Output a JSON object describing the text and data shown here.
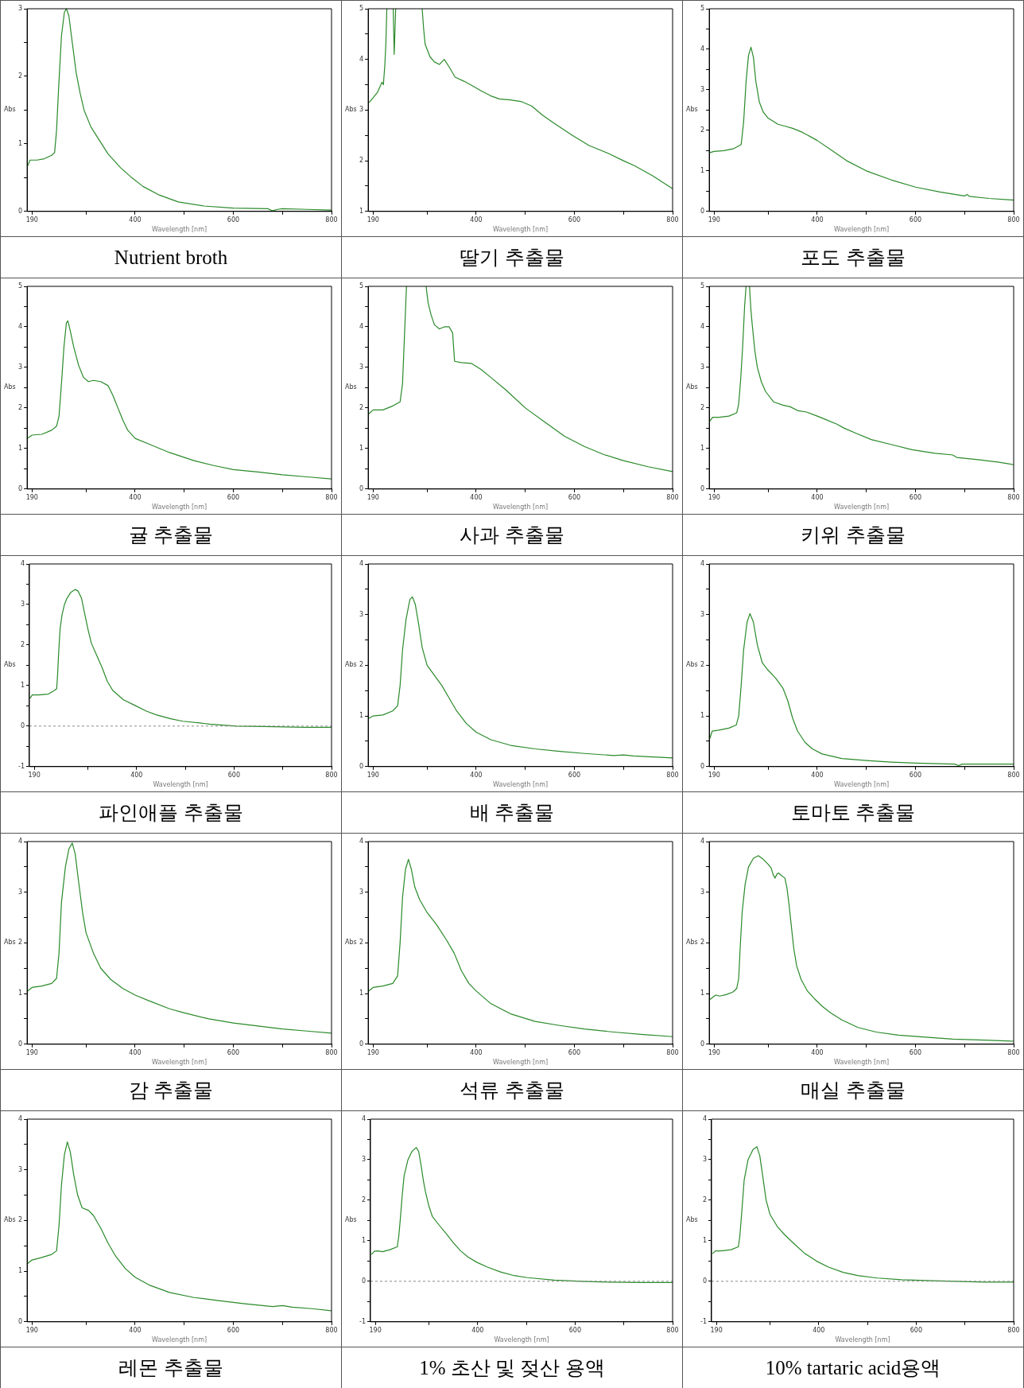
{
  "chart_data": [
    {
      "type": "line",
      "title": "Nutrient broth",
      "xlabel": "Wavelength [nm]",
      "ylabel": "Abs",
      "color": "#2a8a2a",
      "xlim": [
        180,
        800
      ],
      "ylim": [
        0,
        3
      ],
      "xticks": [
        190,
        {
          "value": 300,
          "label": null
        },
        400,
        {
          "value": 500,
          "label": null
        },
        600,
        {
          "value": 700,
          "label": null
        },
        800
      ],
      "yticks": [
        0,
        {
          "value": 0.5,
          "label": null
        },
        1,
        {
          "value": 1.5,
          "label": null
        },
        2,
        {
          "value": 2.5,
          "label": null
        },
        3
      ],
      "x": [
        181,
        186,
        200,
        215,
        230,
        236,
        240,
        244,
        250,
        256,
        260,
        265,
        272,
        280,
        288,
        296,
        310,
        330,
        345,
        370,
        393,
        416,
        450,
        488,
        540,
        600,
        670,
        680,
        690,
        700,
        750,
        800
      ],
      "values": [
        0.67,
        0.76,
        0.76,
        0.78,
        0.83,
        0.87,
        1.2,
        1.8,
        2.6,
        2.95,
        3.0,
        2.9,
        2.5,
        2.05,
        1.75,
        1.5,
        1.25,
        1.02,
        0.85,
        0.65,
        0.5,
        0.37,
        0.24,
        0.14,
        0.08,
        0.05,
        0.04,
        0.01,
        0.03,
        0.04,
        0.03,
        0.02
      ]
    },
    {
      "type": "line",
      "title": "딸기 추출물",
      "xlabel": "Wavelength [nm]",
      "ylabel": "Abs",
      "color": "#2a8a2a",
      "xlim": [
        180,
        800
      ],
      "ylim": [
        1,
        5
      ],
      "xticks": [
        190,
        {
          "value": 300,
          "label": null
        },
        400,
        {
          "value": 500,
          "label": null
        },
        600,
        {
          "value": 700,
          "label": null
        },
        800
      ],
      "yticks": [
        1,
        {
          "value": 1.5,
          "label": null
        },
        2,
        {
          "value": 2.5,
          "label": null
        },
        3,
        {
          "value": 3.5,
          "label": null
        },
        4,
        {
          "value": 4.5,
          "label": null
        },
        5
      ],
      "x": [
        182,
        199,
        208,
        211,
        214,
        216,
        218,
        229,
        231,
        233,
        234,
        236,
        260,
        290,
        293,
        296,
        300,
        306,
        315,
        325,
        335,
        345,
        357,
        375,
        392,
        410,
        430,
        447,
        470,
        491,
        513,
        535,
        557,
        596,
        630,
        668,
        700,
        723,
        760,
        800
      ],
      "values": [
        3.15,
        3.35,
        3.55,
        3.5,
        3.9,
        4.3,
        5,
        null,
        5,
        4.1,
        4.4,
        5,
        null,
        5,
        4.6,
        4.3,
        4.2,
        4.05,
        3.95,
        3.9,
        4.0,
        3.85,
        3.65,
        3.57,
        3.48,
        3.38,
        3.28,
        3.22,
        3.2,
        3.17,
        3.08,
        2.9,
        2.75,
        2.5,
        2.3,
        2.15,
        2.0,
        1.9,
        1.7,
        1.45
      ]
    },
    {
      "type": "line",
      "title": "포도 추출물",
      "xlabel": "Wavelength [nm]",
      "ylabel": "Abs",
      "color": "#2a8a2a",
      "xlim": [
        180,
        800
      ],
      "ylim": [
        0,
        5
      ],
      "xticks": [
        190,
        {
          "value": 300,
          "label": null
        },
        400,
        {
          "value": 500,
          "label": null
        },
        600,
        {
          "value": 700,
          "label": null
        },
        800
      ],
      "yticks": [
        0,
        {
          "value": 0.5,
          "label": null
        },
        1,
        {
          "value": 1.5,
          "label": null
        },
        2,
        {
          "value": 2.5,
          "label": null
        },
        3,
        {
          "value": 3.5,
          "label": null
        },
        4,
        {
          "value": 4.5,
          "label": null
        },
        5
      ],
      "x": [
        181,
        190,
        210,
        230,
        245,
        250,
        255,
        260,
        265,
        270,
        275,
        282,
        290,
        300,
        320,
        335,
        350,
        370,
        400,
        430,
        460,
        500,
        550,
        600,
        650,
        700,
        705,
        710,
        750,
        800
      ],
      "values": [
        1.45,
        1.48,
        1.5,
        1.55,
        1.65,
        2.2,
        3.2,
        3.85,
        4.05,
        3.8,
        3.2,
        2.7,
        2.45,
        2.3,
        2.15,
        2.1,
        2.05,
        1.95,
        1.75,
        1.5,
        1.25,
        1.0,
        0.78,
        0.6,
        0.48,
        0.38,
        0.42,
        0.37,
        0.32,
        0.28
      ]
    },
    {
      "type": "line",
      "title": "귤 추출물",
      "xlabel": "Wavelength [nm]",
      "ylabel": "Abs",
      "color": "#2a8a2a",
      "xlim": [
        180,
        800
      ],
      "ylim": [
        0,
        5
      ],
      "xticks": [
        190,
        {
          "value": 300,
          "label": null
        },
        400,
        {
          "value": 500,
          "label": null
        },
        600,
        {
          "value": 700,
          "label": null
        },
        800
      ],
      "yticks": [
        0,
        {
          "value": 0.5,
          "label": null
        },
        1,
        {
          "value": 1.5,
          "label": null
        },
        2,
        {
          "value": 2.5,
          "label": null
        },
        3,
        {
          "value": 3.5,
          "label": null
        },
        4,
        {
          "value": 4.5,
          "label": null
        },
        5
      ],
      "x": [
        181,
        190,
        210,
        230,
        240,
        245,
        250,
        255,
        260,
        263,
        268,
        275,
        285,
        295,
        305,
        315,
        330,
        345,
        355,
        365,
        375,
        385,
        400,
        430,
        470,
        520,
        560,
        600,
        650,
        700,
        750,
        800
      ],
      "values": [
        1.25,
        1.33,
        1.35,
        1.45,
        1.55,
        1.8,
        2.6,
        3.5,
        4.1,
        4.15,
        3.9,
        3.5,
        3.05,
        2.75,
        2.65,
        2.68,
        2.65,
        2.55,
        2.3,
        2.0,
        1.7,
        1.45,
        1.25,
        1.1,
        0.9,
        0.7,
        0.58,
        0.48,
        0.42,
        0.35,
        0.3,
        0.25
      ]
    },
    {
      "type": "line",
      "title": "사과 추출물",
      "xlabel": "Wavelength [nm]",
      "ylabel": "Abs",
      "color": "#2a8a2a",
      "xlim": [
        180,
        800
      ],
      "ylim": [
        0,
        5
      ],
      "xticks": [
        190,
        {
          "value": 300,
          "label": null
        },
        400,
        {
          "value": 500,
          "label": null
        },
        600,
        {
          "value": 700,
          "label": null
        },
        800
      ],
      "yticks": [
        0,
        {
          "value": 0.5,
          "label": null
        },
        1,
        {
          "value": 1.5,
          "label": null
        },
        2,
        {
          "value": 2.5,
          "label": null
        },
        3,
        {
          "value": 3.5,
          "label": null
        },
        4,
        {
          "value": 4.5,
          "label": null
        },
        5
      ],
      "x": [
        181,
        190,
        210,
        230,
        245,
        250,
        254,
        258,
        280,
        298,
        302,
        308,
        315,
        325,
        335,
        345,
        352,
        356,
        370,
        390,
        410,
        430,
        460,
        500,
        540,
        580,
        620,
        660,
        700,
        750,
        800
      ],
      "values": [
        1.85,
        1.95,
        1.95,
        2.05,
        2.15,
        2.6,
        3.8,
        5,
        null,
        5,
        4.6,
        4.3,
        4.05,
        3.95,
        4.0,
        4.0,
        3.85,
        3.15,
        3.12,
        3.1,
        2.95,
        2.75,
        2.45,
        2.0,
        1.65,
        1.3,
        1.05,
        0.85,
        0.7,
        0.55,
        0.43
      ]
    },
    {
      "type": "line",
      "title": "키위 추출물",
      "xlabel": "Wavelength [nm]",
      "ylabel": "Abs",
      "color": "#2a8a2a",
      "xlim": [
        180,
        800
      ],
      "ylim": [
        0,
        5
      ],
      "xticks": [
        190,
        {
          "value": 300,
          "label": null
        },
        400,
        {
          "value": 500,
          "label": null
        },
        600,
        {
          "value": 700,
          "label": null
        },
        800
      ],
      "yticks": [
        0,
        {
          "value": 0.5,
          "label": null
        },
        1,
        {
          "value": 1.5,
          "label": null
        },
        2,
        {
          "value": 2.5,
          "label": null
        },
        3,
        {
          "value": 3.5,
          "label": null
        },
        4,
        {
          "value": 4.5,
          "label": null
        },
        5
      ],
      "x": [
        181,
        187,
        200,
        220,
        236,
        240,
        244,
        248,
        252,
        255,
        260,
        262,
        265,
        268,
        273,
        278,
        286,
        295,
        311,
        330,
        345,
        361,
        378,
        400,
        416,
        440,
        455,
        480,
        510,
        550,
        593,
        640,
        676,
        684,
        731,
        770,
        800
      ],
      "values": [
        1.67,
        1.77,
        1.77,
        1.8,
        1.88,
        2.1,
        2.7,
        3.5,
        4.5,
        5,
        null,
        5,
        4.4,
        4.0,
        3.4,
        3.0,
        2.65,
        2.4,
        2.15,
        2.07,
        2.03,
        1.93,
        1.9,
        1.8,
        1.72,
        1.6,
        1.5,
        1.37,
        1.22,
        1.1,
        0.97,
        0.88,
        0.84,
        0.78,
        0.72,
        0.66,
        0.6
      ]
    },
    {
      "type": "line",
      "title": "파인애플 추출물",
      "xlabel": "Wavelength [nm]",
      "ylabel": "Abs",
      "color": "#2a8a2a",
      "xlim": [
        180,
        800
      ],
      "ylim": [
        -1,
        4
      ],
      "xticks": [
        190,
        {
          "value": 300,
          "label": null
        },
        400,
        {
          "value": 500,
          "label": null
        },
        600,
        {
          "value": 700,
          "label": null
        },
        800
      ],
      "yticks": [
        -1,
        {
          "value": -0.5,
          "label": null
        },
        0,
        {
          "value": 0.5,
          "label": null
        },
        1,
        {
          "value": 1.5,
          "label": null
        },
        2,
        {
          "value": 2.5,
          "label": null
        },
        3,
        {
          "value": 3.5,
          "label": null
        },
        4
      ],
      "ref_lines": [
        {
          "axis": "y",
          "value": 0,
          "line_style": "dashed",
          "color": "#888888"
        }
      ],
      "x": [
        181,
        186,
        200,
        219,
        230,
        236,
        238,
        240,
        243,
        247,
        252,
        257,
        265,
        274,
        280,
        287,
        293,
        300,
        307,
        318,
        329,
        340,
        351,
        373,
        395,
        420,
        440,
        470,
        495,
        550,
        605,
        661,
        744,
        800
      ],
      "values": [
        0.68,
        0.77,
        0.77,
        0.79,
        0.87,
        0.92,
        1.3,
        1.8,
        2.4,
        2.75,
        3.0,
        3.15,
        3.3,
        3.37,
        3.33,
        3.15,
        2.8,
        2.4,
        2.05,
        1.75,
        1.45,
        1.1,
        0.88,
        0.65,
        0.52,
        0.37,
        0.28,
        0.18,
        0.12,
        0.05,
        0.0,
        -0.01,
        -0.03,
        -0.03
      ]
    },
    {
      "type": "line",
      "title": "배 추출물",
      "xlabel": "Wavelength [nm]",
      "ylabel": "Abs",
      "color": "#2a8a2a",
      "xlim": [
        180,
        800
      ],
      "ylim": [
        0,
        4
      ],
      "xticks": [
        190,
        {
          "value": 300,
          "label": null
        },
        400,
        {
          "value": 500,
          "label": null
        },
        600,
        {
          "value": 700,
          "label": null
        },
        800
      ],
      "yticks": [
        0,
        {
          "value": 0.5,
          "label": null
        },
        1,
        {
          "value": 1.5,
          "label": null
        },
        2,
        {
          "value": 2.5,
          "label": null
        },
        3,
        {
          "value": 3.5,
          "label": null
        },
        4
      ],
      "x": [
        181,
        190,
        210,
        230,
        240,
        245,
        250,
        257,
        265,
        270,
        276,
        283,
        290,
        300,
        315,
        330,
        345,
        360,
        380,
        400,
        430,
        470,
        520,
        570,
        620,
        680,
        700,
        720,
        760,
        800
      ],
      "values": [
        0.95,
        1.0,
        1.02,
        1.1,
        1.2,
        1.6,
        2.3,
        2.9,
        3.3,
        3.35,
        3.2,
        2.8,
        2.35,
        2.0,
        1.8,
        1.6,
        1.35,
        1.1,
        0.85,
        0.68,
        0.53,
        0.42,
        0.35,
        0.3,
        0.26,
        0.22,
        0.23,
        0.21,
        0.19,
        0.17
      ]
    },
    {
      "type": "line",
      "title": "토마토 추출물",
      "xlabel": "Wavelength [nm]",
      "ylabel": "Abs",
      "color": "#2a8a2a",
      "xlim": [
        180,
        800
      ],
      "ylim": [
        0,
        4
      ],
      "xticks": [
        190,
        {
          "value": 300,
          "label": null
        },
        400,
        {
          "value": 500,
          "label": null
        },
        600,
        {
          "value": 700,
          "label": null
        },
        800
      ],
      "yticks": [
        0,
        {
          "value": 0.5,
          "label": null
        },
        1,
        {
          "value": 1.5,
          "label": null
        },
        2,
        {
          "value": 2.5,
          "label": null
        },
        3,
        {
          "value": 3.5,
          "label": null
        },
        4
      ],
      "x": [
        181,
        186,
        200,
        220,
        235,
        240,
        245,
        250,
        257,
        263,
        270,
        278,
        288,
        300,
        315,
        330,
        340,
        350,
        360,
        375,
        390,
        410,
        450,
        500,
        550,
        600,
        680,
        688,
        695,
        750,
        800
      ],
      "values": [
        0.55,
        0.7,
        0.72,
        0.76,
        0.82,
        1.0,
        1.6,
        2.3,
        2.85,
        3.02,
        2.85,
        2.4,
        2.05,
        1.9,
        1.75,
        1.55,
        1.3,
        0.95,
        0.7,
        0.48,
        0.35,
        0.25,
        0.16,
        0.12,
        0.09,
        0.07,
        0.05,
        0.02,
        0.05,
        0.05,
        0.05
      ]
    },
    {
      "type": "line",
      "title": "감 추출물",
      "xlabel": "Wavelength [nm]",
      "ylabel": "Abs",
      "color": "#2a8a2a",
      "xlim": [
        180,
        800
      ],
      "ylim": [
        0,
        4
      ],
      "xticks": [
        190,
        {
          "value": 300,
          "label": null
        },
        400,
        {
          "value": 500,
          "label": null
        },
        600,
        {
          "value": 700,
          "label": null
        },
        800
      ],
      "yticks": [
        0,
        {
          "value": 0.5,
          "label": null
        },
        1,
        {
          "value": 1.5,
          "label": null
        },
        2,
        {
          "value": 2.5,
          "label": null
        },
        3,
        {
          "value": 3.5,
          "label": null
        },
        4
      ],
      "x": [
        181,
        190,
        210,
        230,
        240,
        245,
        250,
        258,
        265,
        272,
        278,
        285,
        293,
        300,
        315,
        330,
        350,
        375,
        400,
        430,
        470,
        500,
        550,
        600,
        650,
        700,
        750,
        800
      ],
      "values": [
        1.05,
        1.12,
        1.15,
        1.2,
        1.3,
        1.8,
        2.8,
        3.5,
        3.85,
        3.97,
        3.75,
        3.2,
        2.6,
        2.2,
        1.8,
        1.5,
        1.28,
        1.1,
        0.97,
        0.85,
        0.7,
        0.62,
        0.5,
        0.42,
        0.36,
        0.3,
        0.26,
        0.22
      ]
    },
    {
      "type": "line",
      "title": "석류 추출물",
      "xlabel": "Wavelength [nm]",
      "ylabel": "Abs",
      "color": "#2a8a2a",
      "xlim": [
        180,
        800
      ],
      "ylim": [
        0,
        4
      ],
      "xticks": [
        190,
        {
          "value": 300,
          "label": null
        },
        400,
        {
          "value": 500,
          "label": null
        },
        600,
        {
          "value": 700,
          "label": null
        },
        800
      ],
      "yticks": [
        0,
        {
          "value": 0.5,
          "label": null
        },
        1,
        {
          "value": 1.5,
          "label": null
        },
        2,
        {
          "value": 2.5,
          "label": null
        },
        3,
        {
          "value": 3.5,
          "label": null
        },
        4
      ],
      "x": [
        181,
        190,
        210,
        230,
        240,
        245,
        250,
        256,
        262,
        268,
        275,
        285,
        300,
        320,
        340,
        355,
        370,
        385,
        400,
        430,
        470,
        520,
        570,
        620,
        680,
        740,
        800
      ],
      "values": [
        1.05,
        1.12,
        1.15,
        1.2,
        1.35,
        2.0,
        2.9,
        3.45,
        3.65,
        3.45,
        3.1,
        2.85,
        2.6,
        2.35,
        2.05,
        1.8,
        1.45,
        1.2,
        1.05,
        0.8,
        0.6,
        0.45,
        0.37,
        0.3,
        0.24,
        0.19,
        0.15
      ]
    },
    {
      "type": "line",
      "title": "매실 추출물",
      "xlabel": "Wavelength [nm]",
      "ylabel": "Abs",
      "color": "#2a8a2a",
      "xlim": [
        180,
        800
      ],
      "ylim": [
        0,
        4
      ],
      "xticks": [
        190,
        {
          "value": 300,
          "label": null
        },
        400,
        {
          "value": 500,
          "label": null
        },
        600,
        {
          "value": 700,
          "label": null
        },
        800
      ],
      "yticks": [
        0,
        {
          "value": 0.5,
          "label": null
        },
        1,
        {
          "value": 1.5,
          "label": null
        },
        2,
        {
          "value": 2.5,
          "label": null
        },
        3,
        {
          "value": 3.5,
          "label": null
        },
        4
      ],
      "x": [
        181,
        193,
        201,
        215,
        228,
        236,
        240,
        243,
        247,
        253,
        260,
        270,
        280,
        290,
        300,
        306,
        310,
        314,
        318,
        321,
        327,
        334,
        338,
        342,
        347,
        352,
        358,
        367,
        380,
        394,
        410,
        427,
        450,
        483,
        520,
        565,
        620,
        676,
        740,
        800
      ],
      "values": [
        0.88,
        0.97,
        0.95,
        0.98,
        1.03,
        1.1,
        1.3,
        1.9,
        2.6,
        3.15,
        3.5,
        3.67,
        3.72,
        3.65,
        3.55,
        3.48,
        3.35,
        3.28,
        3.36,
        3.38,
        3.33,
        3.28,
        3.1,
        2.8,
        2.35,
        1.9,
        1.55,
        1.28,
        1.05,
        0.9,
        0.75,
        0.62,
        0.48,
        0.33,
        0.24,
        0.18,
        0.14,
        0.1,
        0.08,
        0.06
      ]
    },
    {
      "type": "line",
      "title": "레몬 추출물",
      "xlabel": "Wavelength [nm]",
      "ylabel": "Abs",
      "color": "#2a8a2a",
      "xlim": [
        180,
        800
      ],
      "ylim": [
        0,
        4
      ],
      "xticks": [
        190,
        {
          "value": 300,
          "label": null
        },
        400,
        {
          "value": 500,
          "label": null
        },
        600,
        {
          "value": 700,
          "label": null
        },
        800
      ],
      "yticks": [
        0,
        {
          "value": 0.5,
          "label": null
        },
        1,
        {
          "value": 1.5,
          "label": null
        },
        2,
        {
          "value": 2.5,
          "label": null
        },
        3,
        {
          "value": 3.5,
          "label": null
        },
        4
      ],
      "x": [
        181,
        190,
        210,
        230,
        240,
        245,
        250,
        256,
        262,
        268,
        275,
        283,
        292,
        305,
        315,
        330,
        345,
        360,
        380,
        400,
        430,
        470,
        520,
        570,
        620,
        680,
        700,
        720,
        760,
        800
      ],
      "values": [
        1.15,
        1.22,
        1.27,
        1.33,
        1.4,
        1.9,
        2.7,
        3.3,
        3.55,
        3.35,
        2.9,
        2.5,
        2.25,
        2.2,
        2.1,
        1.85,
        1.55,
        1.3,
        1.05,
        0.88,
        0.72,
        0.58,
        0.48,
        0.42,
        0.36,
        0.3,
        0.32,
        0.29,
        0.26,
        0.22
      ]
    },
    {
      "type": "line",
      "title": "1% 초산 및 젖산 용액",
      "xlabel": "Wavelength [nm]",
      "ylabel": "Abs",
      "color": "#2a8a2a",
      "xlim": [
        180,
        800
      ],
      "ylim": [
        -1,
        4
      ],
      "xticks": [
        190,
        {
          "value": 300,
          "label": null
        },
        400,
        {
          "value": 500,
          "label": null
        },
        600,
        {
          "value": 700,
          "label": null
        },
        800
      ],
      "yticks": [
        -1,
        {
          "value": -0.5,
          "label": null
        },
        0,
        {
          "value": 0.5,
          "label": null
        },
        1,
        {
          "value": 1.5,
          "label": null
        },
        2,
        {
          "value": 2.5,
          "label": null
        },
        3,
        {
          "value": 3.5,
          "label": null
        },
        4
      ],
      "ref_lines": [
        {
          "axis": "y",
          "value": 0,
          "line_style": "dashed",
          "color": "#888888"
        }
      ],
      "x": [
        182,
        188,
        194,
        205,
        220,
        235,
        238,
        241,
        245,
        249,
        257,
        265,
        274,
        279,
        284,
        289,
        293,
        300,
        307,
        320,
        337,
        350,
        365,
        380,
        398,
        420,
        447,
        475,
        502,
        557,
        613,
        668,
        740,
        800
      ],
      "values": [
        0.66,
        0.74,
        0.75,
        0.73,
        0.78,
        0.85,
        1.1,
        1.5,
        2.1,
        2.6,
        3.0,
        3.2,
        3.3,
        3.2,
        2.85,
        2.45,
        2.2,
        1.85,
        1.6,
        1.4,
        1.15,
        0.95,
        0.75,
        0.6,
        0.47,
        0.35,
        0.23,
        0.14,
        0.09,
        0.03,
        0.0,
        -0.02,
        -0.03,
        -0.03
      ]
    },
    {
      "type": "line",
      "title": "10% tartaric acid용액",
      "xlabel": "Wavelength [nm]",
      "ylabel": "Abs",
      "color": "#2a8a2a",
      "xlim": [
        180,
        800
      ],
      "ylim": [
        -1,
        4
      ],
      "xticks": [
        190,
        {
          "value": 300,
          "label": null
        },
        400,
        {
          "value": 500,
          "label": null
        },
        600,
        {
          "value": 700,
          "label": null
        },
        800
      ],
      "yticks": [
        -1,
        {
          "value": -0.5,
          "label": null
        },
        0,
        {
          "value": 0.5,
          "label": null
        },
        1,
        {
          "value": 1.5,
          "label": null
        },
        2,
        {
          "value": 2.5,
          "label": null
        },
        3,
        {
          "value": 3.5,
          "label": null
        },
        4
      ],
      "ref_lines": [
        {
          "axis": "y",
          "value": 0,
          "line_style": "dashed",
          "color": "#888888"
        }
      ],
      "x": [
        182,
        188,
        200,
        220,
        235,
        238,
        242,
        247,
        255,
        265,
        273,
        279,
        285,
        292,
        300,
        315,
        330,
        350,
        370,
        395,
        420,
        450,
        480,
        520,
        570,
        620,
        680,
        740,
        800
      ],
      "values": [
        0.68,
        0.75,
        0.75,
        0.78,
        0.85,
        1.1,
        1.7,
        2.5,
        3.0,
        3.25,
        3.32,
        3.1,
        2.6,
        2.0,
        1.65,
        1.35,
        1.15,
        0.92,
        0.7,
        0.5,
        0.35,
        0.22,
        0.14,
        0.08,
        0.04,
        0.02,
        0.0,
        -0.02,
        -0.02
      ]
    }
  ]
}
